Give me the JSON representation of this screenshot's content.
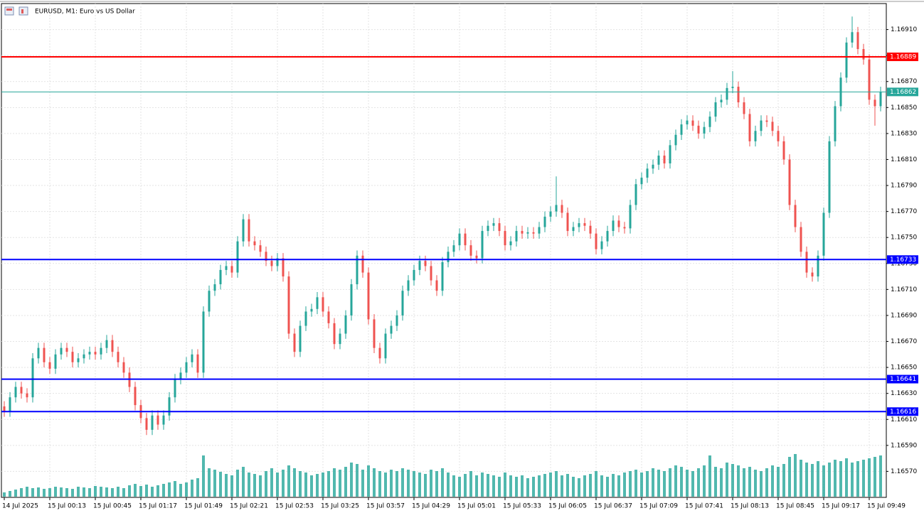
{
  "chart_data": {
    "type": "candlestick",
    "title": "EURUSD, M1:  Euro vs US Dollar",
    "categories": [
      "14 Jul 2025",
      null,
      null,
      null,
      null,
      null,
      null,
      null,
      "15 Jul 00:13",
      null,
      null,
      null,
      null,
      null,
      null,
      null,
      "15 Jul 00:45",
      null,
      null,
      null,
      null,
      null,
      null,
      null,
      "15 Jul 01:17",
      null,
      null,
      null,
      null,
      null,
      null,
      null,
      "15 Jul 01:49",
      null,
      null,
      null,
      null,
      null,
      null,
      null,
      "15 Jul 02:21",
      null,
      null,
      null,
      null,
      null,
      null,
      null,
      "15 Jul 02:53",
      null,
      null,
      null,
      null,
      null,
      null,
      null,
      "15 Jul 03:25",
      null,
      null,
      null,
      null,
      null,
      null,
      null,
      "15 Jul 03:57",
      null,
      null,
      null,
      null,
      null,
      null,
      null,
      "15 Jul 04:29",
      null,
      null,
      null,
      null,
      null,
      null,
      null,
      "15 Jul 05:01",
      null,
      null,
      null,
      null,
      null,
      null,
      null,
      "15 Jul 05:33",
      null,
      null,
      null,
      null,
      null,
      null,
      null,
      "15 Jul 06:05",
      null,
      null,
      null,
      null,
      null,
      null,
      null,
      "15 Jul 06:37",
      null,
      null,
      null,
      null,
      null,
      null,
      null,
      "15 Jul 07:09",
      null,
      null,
      null,
      null,
      null,
      null,
      null,
      "15 Jul 07:41",
      null,
      null,
      null,
      null,
      null,
      null,
      null,
      "15 Jul 08:13",
      null,
      null,
      null,
      null,
      null,
      null,
      null,
      "15 Jul 08:45",
      null,
      null,
      null,
      null,
      null,
      null,
      null,
      "15 Jul 09:17",
      null,
      null,
      null,
      null,
      null,
      null,
      null,
      "15 Jul 09:49",
      null,
      null
    ],
    "open": [
      1.1662,
      1.16616,
      1.16627,
      1.16635,
      1.1663,
      1.16627,
      1.16657,
      1.16665,
      1.16654,
      1.16649,
      1.1666,
      1.16665,
      1.16662,
      1.16654,
      1.16657,
      1.1666,
      1.16662,
      1.1666,
      1.16665,
      1.16671,
      1.16662,
      1.16654,
      1.16646,
      1.16635,
      1.16621,
      1.16611,
      1.16602,
      1.16613,
      1.16606,
      1.16613,
      1.16627,
      1.16641,
      1.16646,
      1.16654,
      1.1666,
      1.16646,
      1.16693,
      1.16709,
      1.16714,
      1.16725,
      1.16728,
      1.16723,
      1.16747,
      1.16764,
      1.16747,
      1.16744,
      1.16739,
      1.16732,
      1.16728,
      1.16734,
      1.1672,
      1.16676,
      1.16662,
      1.16682,
      1.16693,
      1.16695,
      1.16704,
      1.16693,
      1.16684,
      1.16668,
      1.16676,
      1.1669,
      1.16714,
      1.16736,
      1.16723,
      1.16687,
      1.16665,
      1.16657,
      1.16676,
      1.16682,
      1.1669,
      1.16709,
      1.16717,
      1.16725,
      1.16732,
      1.16728,
      1.16717,
      1.16709,
      1.16731,
      1.16739,
      1.16744,
      1.16753,
      1.16744,
      1.16736,
      1.16734,
      1.16755,
      1.16759,
      1.16761,
      1.16755,
      1.16744,
      1.16747,
      1.16755,
      1.16753,
      1.16754,
      1.16753,
      1.16758,
      1.16766,
      1.1677,
      1.16775,
      1.16769,
      1.16755,
      1.16758,
      1.16761,
      1.16759,
      1.16753,
      1.16741,
      1.16747,
      1.16755,
      1.16763,
      1.16758,
      1.16757,
      1.16775,
      1.16791,
      1.16796,
      1.16803,
      1.16806,
      1.16813,
      1.16807,
      1.16821,
      1.16829,
      1.16837,
      1.1684,
      1.16836,
      1.1683,
      1.16835,
      1.16843,
      1.16854,
      1.16856,
      1.16865,
      1.16866,
      1.16854,
      1.16845,
      1.16824,
      1.16832,
      1.1684,
      1.16839,
      1.16832,
      1.16824,
      1.1681,
      1.16775,
      1.16758,
      1.16739,
      1.16723,
      1.1672,
      1.16736,
      1.16769,
      1.16824,
      1.16851,
      1.16873,
      1.169,
      1.16908,
      1.16895,
      1.16887,
      1.16856,
      1.16851
    ],
    "high": [
      1.16624,
      1.16631,
      1.16639,
      1.16639,
      1.16634,
      1.16661,
      1.16669,
      1.16669,
      1.16658,
      1.16664,
      1.16669,
      1.16669,
      1.16666,
      1.16661,
      1.16664,
      1.16666,
      1.16666,
      1.16669,
      1.16675,
      1.16675,
      1.16666,
      1.16658,
      1.1665,
      1.16639,
      1.16625,
      1.16615,
      1.16617,
      1.16617,
      1.16617,
      1.16631,
      1.16645,
      1.1665,
      1.16658,
      1.16664,
      1.16664,
      1.16697,
      1.16713,
      1.16718,
      1.16729,
      1.16732,
      1.16732,
      1.16751,
      1.16768,
      1.16768,
      1.16751,
      1.16748,
      1.16743,
      1.16736,
      1.16738,
      1.16738,
      1.16724,
      1.1668,
      1.16686,
      1.16697,
      1.16699,
      1.16708,
      1.16708,
      1.16697,
      1.16688,
      1.1668,
      1.16694,
      1.16718,
      1.1674,
      1.1674,
      1.16727,
      1.16691,
      1.16669,
      1.1668,
      1.16686,
      1.16694,
      1.16713,
      1.16721,
      1.16729,
      1.16736,
      1.16736,
      1.16732,
      1.16721,
      1.16735,
      1.16743,
      1.16748,
      1.16757,
      1.16757,
      1.16748,
      1.1674,
      1.16759,
      1.16763,
      1.16765,
      1.16765,
      1.16759,
      1.16751,
      1.16759,
      1.16759,
      1.16758,
      1.16758,
      1.16762,
      1.1677,
      1.16774,
      1.16797,
      1.16779,
      1.16773,
      1.16762,
      1.16765,
      1.16765,
      1.16763,
      1.16757,
      1.16751,
      1.16759,
      1.16767,
      1.16767,
      1.16762,
      1.16779,
      1.16795,
      1.168,
      1.16807,
      1.1681,
      1.16817,
      1.16817,
      1.16825,
      1.16833,
      1.16841,
      1.16844,
      1.16844,
      1.1684,
      1.16839,
      1.16847,
      1.16858,
      1.1686,
      1.16869,
      1.16878,
      1.1687,
      1.16858,
      1.16849,
      1.16836,
      1.16844,
      1.16844,
      1.16843,
      1.16836,
      1.16828,
      1.16814,
      1.16779,
      1.16762,
      1.16743,
      1.16727,
      1.1674,
      1.16773,
      1.16828,
      1.16855,
      1.16877,
      1.16904,
      1.1692,
      1.16912,
      1.16899,
      1.16891,
      1.1686,
      1.16866
    ],
    "low": [
      1.16612,
      1.16612,
      1.16623,
      1.16626,
      1.16623,
      1.16623,
      1.16653,
      1.1665,
      1.16645,
      1.16645,
      1.16656,
      1.16658,
      1.1665,
      1.1665,
      1.16653,
      1.16656,
      1.16656,
      1.16656,
      1.16661,
      1.16658,
      1.1665,
      1.16642,
      1.16631,
      1.16617,
      1.16607,
      1.16598,
      1.16598,
      1.16602,
      1.16602,
      1.16609,
      1.16623,
      1.16637,
      1.16642,
      1.1665,
      1.16642,
      1.16642,
      1.16689,
      1.16705,
      1.1671,
      1.16721,
      1.16719,
      1.16719,
      1.16743,
      1.16743,
      1.1674,
      1.16735,
      1.16728,
      1.16724,
      1.16724,
      1.16716,
      1.16672,
      1.16658,
      1.16658,
      1.16678,
      1.16689,
      1.16691,
      1.16689,
      1.1668,
      1.16664,
      1.16664,
      1.16672,
      1.16686,
      1.1671,
      1.16719,
      1.16683,
      1.16661,
      1.16653,
      1.16653,
      1.16672,
      1.16678,
      1.16686,
      1.16705,
      1.16713,
      1.16721,
      1.16724,
      1.16713,
      1.16705,
      1.16705,
      1.16727,
      1.16735,
      1.1674,
      1.1674,
      1.16732,
      1.1673,
      1.1673,
      1.16751,
      1.16755,
      1.16751,
      1.1674,
      1.1674,
      1.16743,
      1.16749,
      1.16749,
      1.16749,
      1.16749,
      1.16754,
      1.16762,
      1.16766,
      1.16765,
      1.16751,
      1.16751,
      1.16754,
      1.16755,
      1.16749,
      1.16737,
      1.16737,
      1.16743,
      1.16751,
      1.16754,
      1.16753,
      1.16753,
      1.16771,
      1.16787,
      1.16792,
      1.16799,
      1.16802,
      1.16803,
      1.16803,
      1.16817,
      1.16825,
      1.16833,
      1.16832,
      1.16826,
      1.16826,
      1.16831,
      1.16839,
      1.1685,
      1.16852,
      1.16861,
      1.1685,
      1.16841,
      1.1682,
      1.1682,
      1.16828,
      1.16835,
      1.16828,
      1.1682,
      1.16806,
      1.16771,
      1.16754,
      1.16735,
      1.16719,
      1.16716,
      1.16716,
      1.16732,
      1.16765,
      1.1682,
      1.16847,
      1.16869,
      1.16896,
      1.16891,
      1.16883,
      1.16852,
      1.16836,
      1.16847
    ],
    "close": [
      1.16616,
      1.16627,
      1.16635,
      1.1663,
      1.16627,
      1.16657,
      1.16665,
      1.16654,
      1.16649,
      1.1666,
      1.16665,
      1.16662,
      1.16654,
      1.16657,
      1.1666,
      1.16662,
      1.1666,
      1.16665,
      1.16671,
      1.16662,
      1.16654,
      1.16646,
      1.16635,
      1.16621,
      1.16611,
      1.16602,
      1.16613,
      1.16606,
      1.16613,
      1.16627,
      1.16641,
      1.16646,
      1.16654,
      1.1666,
      1.16646,
      1.16693,
      1.16709,
      1.16714,
      1.16725,
      1.16728,
      1.16723,
      1.16747,
      1.16764,
      1.16747,
      1.16744,
      1.16739,
      1.16732,
      1.16728,
      1.16734,
      1.1672,
      1.16676,
      1.16662,
      1.16682,
      1.16693,
      1.16695,
      1.16704,
      1.16693,
      1.16684,
      1.16668,
      1.16676,
      1.1669,
      1.16714,
      1.16736,
      1.16723,
      1.16687,
      1.16665,
      1.16657,
      1.16676,
      1.16682,
      1.1669,
      1.16709,
      1.16717,
      1.16725,
      1.16732,
      1.16728,
      1.16717,
      1.16709,
      1.16731,
      1.16739,
      1.16744,
      1.16753,
      1.16744,
      1.16736,
      1.16734,
      1.16755,
      1.16759,
      1.16761,
      1.16755,
      1.16744,
      1.16747,
      1.16755,
      1.16753,
      1.16754,
      1.16753,
      1.16758,
      1.16766,
      1.1677,
      1.16775,
      1.16769,
      1.16755,
      1.16758,
      1.16761,
      1.16759,
      1.16753,
      1.16741,
      1.16747,
      1.16755,
      1.16763,
      1.16758,
      1.16757,
      1.16775,
      1.16791,
      1.16796,
      1.16803,
      1.16806,
      1.16813,
      1.16807,
      1.16821,
      1.16829,
      1.16837,
      1.1684,
      1.16836,
      1.1683,
      1.16835,
      1.16843,
      1.16854,
      1.16856,
      1.16865,
      1.16866,
      1.16854,
      1.16845,
      1.16824,
      1.16832,
      1.1684,
      1.16839,
      1.16832,
      1.16824,
      1.1681,
      1.16775,
      1.16758,
      1.16739,
      1.16723,
      1.1672,
      1.16736,
      1.16769,
      1.16824,
      1.16851,
      1.16873,
      1.169,
      1.16908,
      1.16895,
      1.16887,
      1.16856,
      1.16851,
      1.16862
    ],
    "volume": [
      6,
      8,
      10,
      12,
      14,
      12,
      13,
      11,
      12,
      14,
      13,
      12,
      11,
      14,
      13,
      12,
      15,
      14,
      13,
      12,
      14,
      12,
      16,
      18,
      15,
      17,
      14,
      16,
      18,
      20,
      22,
      18,
      20,
      24,
      26,
      58,
      40,
      38,
      35,
      32,
      30,
      38,
      42,
      34,
      32,
      30,
      36,
      40,
      34,
      38,
      44,
      40,
      36,
      34,
      30,
      32,
      34,
      36,
      40,
      38,
      42,
      48,
      46,
      38,
      44,
      40,
      36,
      34,
      38,
      36,
      40,
      38,
      36,
      34,
      32,
      38,
      36,
      40,
      34,
      30,
      28,
      32,
      36,
      30,
      34,
      32,
      30,
      28,
      34,
      30,
      28,
      30,
      26,
      28,
      30,
      32,
      34,
      36,
      30,
      32,
      28,
      26,
      30,
      32,
      36,
      30,
      28,
      32,
      30,
      34,
      36,
      38,
      34,
      36,
      40,
      38,
      36,
      40,
      44,
      42,
      38,
      36,
      40,
      44,
      58,
      42,
      40,
      48,
      46,
      44,
      40,
      42,
      38,
      36,
      40,
      44,
      42,
      46,
      56,
      60,
      52,
      48,
      46,
      50,
      44,
      48,
      52,
      50,
      54,
      48,
      50,
      52,
      54,
      56,
      58
    ],
    "colors": {
      "up": "#26a69a",
      "down": "#ef5350",
      "volume": "#26a69a"
    },
    "ylim": [
      1.1655,
      1.1693
    ],
    "volume_lim": [
      0,
      100
    ],
    "yticks": [
      {
        "value": 1.1657,
        "label": "1.16570"
      },
      {
        "value": 1.1659,
        "label": "1.16590"
      },
      {
        "value": 1.1661,
        "label": "1.16610"
      },
      {
        "value": 1.1663,
        "label": "1.16630"
      },
      {
        "value": 1.1665,
        "label": "1.16650"
      },
      {
        "value": 1.1667,
        "label": "1.16670"
      },
      {
        "value": 1.1669,
        "label": "1.16690"
      },
      {
        "value": 1.1671,
        "label": "1.16710"
      },
      {
        "value": 1.1673,
        "label": "1.16730"
      },
      {
        "value": 1.1675,
        "label": "1.16750"
      },
      {
        "value": 1.1677,
        "label": "1.16770"
      },
      {
        "value": 1.1679,
        "label": "1.16790"
      },
      {
        "value": 1.1681,
        "label": "1.16810"
      },
      {
        "value": 1.1683,
        "label": "1.16830"
      },
      {
        "value": 1.1685,
        "label": "1.16850"
      },
      {
        "value": 1.1687,
        "label": "1.16870"
      },
      {
        "value": 1.1689,
        "label": "1.16890"
      },
      {
        "value": 1.1691,
        "label": "1.16910"
      }
    ],
    "hlines": [
      {
        "value": 1.16889,
        "color": "#ff0000"
      },
      {
        "value": 1.16862,
        "color": "#26a69a"
      },
      {
        "value": 1.16733,
        "color": "#0000ff"
      },
      {
        "value": 1.16641,
        "color": "#0000ff"
      },
      {
        "value": 1.16616,
        "color": "#0000ff"
      }
    ],
    "grid": true
  }
}
